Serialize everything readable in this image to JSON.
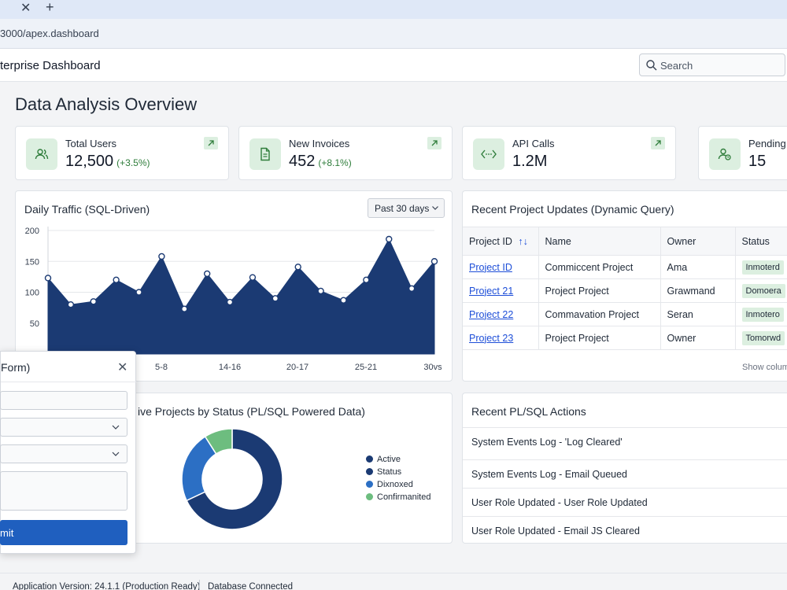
{
  "browser": {
    "close_glyph": "✕",
    "new_tab_glyph": "+",
    "url": "3000/apex.dashboard"
  },
  "header": {
    "app_title": "terprise Dashboard",
    "search_placeholder": "Search"
  },
  "page": {
    "title": "Data Analysis Overview"
  },
  "kpis": [
    {
      "label": "Total Users",
      "value": "12,500",
      "change": "(+3.5%)",
      "icon": "users-icon"
    },
    {
      "label": "New Invoices",
      "value": "452",
      "change": "(+8.1%)",
      "icon": "document-icon"
    },
    {
      "label": "API Calls",
      "value": "1.2M",
      "change": "",
      "icon": "code-icon"
    },
    {
      "label": "Pending A",
      "value": "15",
      "change": "",
      "icon": "user-clock-icon"
    }
  ],
  "traffic": {
    "title": "Daily Traffic (SQL-Driven)",
    "range_label": "Past 30 days",
    "chart_data": {
      "type": "area",
      "title": "Daily Traffic (SQL-Driven)",
      "y_ticks": [
        "200",
        "150",
        "100",
        "50"
      ],
      "x_ticks": [
        "5-8",
        "14-16",
        "20-17",
        "25-21",
        "30vs"
      ],
      "ylim": [
        0,
        200
      ],
      "values": [
        123,
        80,
        85,
        120,
        100,
        158,
        73,
        130,
        84,
        124,
        90,
        141,
        102,
        87,
        120,
        186,
        106,
        150
      ],
      "grid": true,
      "color": "#1b3a73"
    }
  },
  "projects": {
    "title": "Recent Project Updates (Dynamic Query)",
    "columns": [
      "Project ID",
      "Name",
      "Owner",
      "Status"
    ],
    "sort_glyph": "↑↓",
    "rows": [
      {
        "id": "Project ID",
        "name": "Commiccent Project",
        "owner": "Ama",
        "status": "Inmoterd"
      },
      {
        "id": "Project 21",
        "name": "Project Project",
        "owner": "Grawmand",
        "status": "Domoera"
      },
      {
        "id": "Project 22",
        "name": "Commavation Project",
        "owner": "Seran",
        "status": "Inmotero"
      },
      {
        "id": "Project 23",
        "name": "Project Project",
        "owner": "Owner",
        "status": "Tomorwd"
      }
    ],
    "show_columns": "Show colum"
  },
  "status_chart": {
    "title": "ive Projects by Status (PL/SQL Powered Data)",
    "chart_data": {
      "type": "pie",
      "labels": [
        "Active",
        "Status",
        "Dixnoxed",
        "Confirmanited"
      ],
      "values": [
        68,
        0.01,
        23,
        9
      ],
      "colors": [
        "#1b3a73",
        "#1b3a73",
        "#2c6fc4",
        "#6dbd7f"
      ]
    }
  },
  "actions": {
    "title": "Recent PL/SQL Actions",
    "items": [
      "System Events Log - 'Log Cleared'",
      "System Events Log - Email Queued",
      "User Role Updated - User Role Updated",
      "User Role Updated - Email JS Cleared"
    ]
  },
  "modal": {
    "title": "Form)",
    "close_glyph": "✕",
    "submit_label": "mit"
  },
  "footer": {
    "version": "Application Version: 24.1.1 (Production Ready)",
    "db_status": "Database Connected"
  },
  "colors": {
    "accent": "#1f5fbf",
    "chart_fill": "#1b3a73",
    "kpi_icon_bg": "#dcefe0",
    "positive": "#2f7d3b"
  }
}
